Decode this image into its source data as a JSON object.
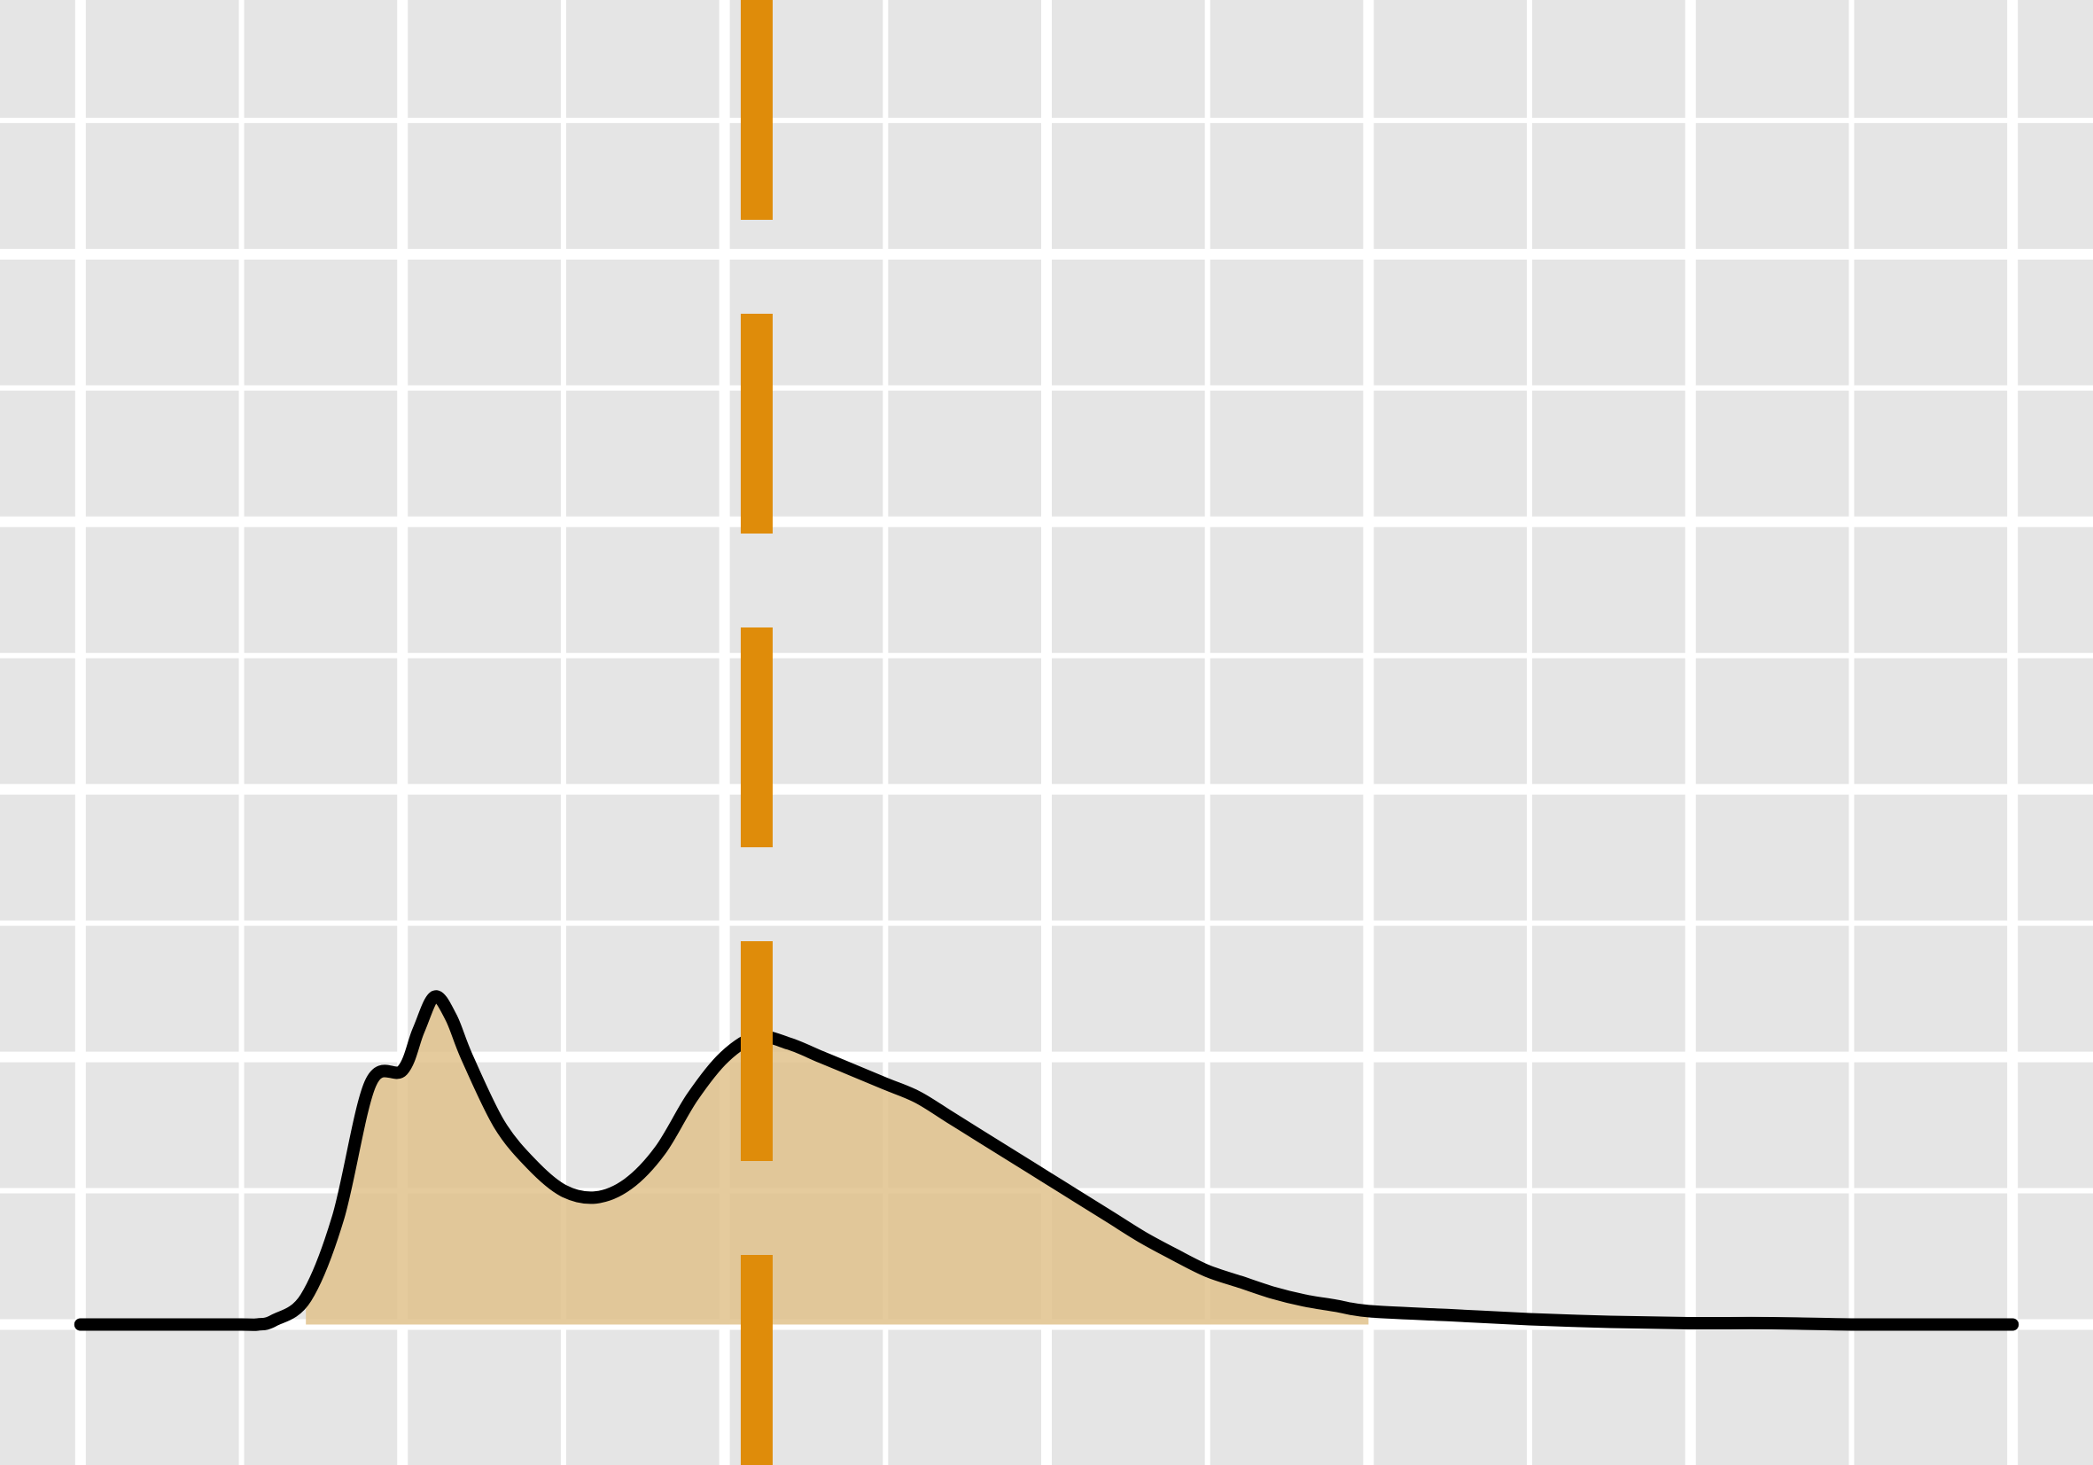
{
  "chart_data": {
    "type": "area",
    "title": "",
    "xlabel": "",
    "ylabel": "",
    "xlim": [
      -0.5,
      12.5
    ],
    "ylim": [
      -0.105,
      0.99
    ],
    "x_major_ticks": [
      0,
      2,
      4,
      6,
      8,
      10,
      12
    ],
    "x_minor_ticks": [
      1,
      3,
      5,
      7,
      9,
      11
    ],
    "y_major_ticks": [
      0,
      0.2,
      0.4,
      0.6,
      0.8
    ],
    "y_minor_ticks": [
      0.1,
      0.3,
      0.5,
      0.7,
      0.9
    ],
    "grid": true,
    "legend": "none",
    "series": [
      {
        "kind": "density",
        "x": [
          0.0,
          0.5,
          1.0,
          1.1,
          1.2,
          1.4,
          1.6,
          1.8,
          2.0,
          2.1,
          2.2,
          2.3,
          2.4,
          2.6,
          2.8,
          3.0,
          3.2,
          3.4,
          3.6,
          3.8,
          4.0,
          4.2,
          4.4,
          4.6,
          4.8,
          5.0,
          5.2,
          5.4,
          5.6,
          5.8,
          6.0,
          6.2,
          6.4,
          6.6,
          6.8,
          7.0,
          7.2,
          7.4,
          7.6,
          7.8,
          8.0,
          8.5,
          9.0,
          9.5,
          10.0,
          10.5,
          11.0,
          11.5,
          12.0
        ],
        "y": [
          0.0,
          0.0,
          0.0,
          0.0,
          0.003,
          0.02,
          0.08,
          0.18,
          0.19,
          0.22,
          0.245,
          0.23,
          0.2,
          0.15,
          0.12,
          0.1,
          0.095,
          0.105,
          0.13,
          0.17,
          0.2,
          0.215,
          0.21,
          0.2,
          0.19,
          0.18,
          0.17,
          0.155,
          0.14,
          0.125,
          0.11,
          0.095,
          0.08,
          0.065,
          0.052,
          0.04,
          0.032,
          0.024,
          0.018,
          0.014,
          0.01,
          0.007,
          0.004,
          0.002,
          0.001,
          0.001,
          0.0,
          0.0,
          0.0
        ],
        "shade_from": 1.4,
        "shade_to": 8.0,
        "line_color": "#000000",
        "fill_color": "#e0c28c"
      }
    ],
    "reference_line": {
      "x": 4.2,
      "color": "#df8c0a",
      "style": "dashed"
    },
    "colors": {
      "panel_background": "#e5e5e5",
      "grid": "#ffffff"
    }
  }
}
